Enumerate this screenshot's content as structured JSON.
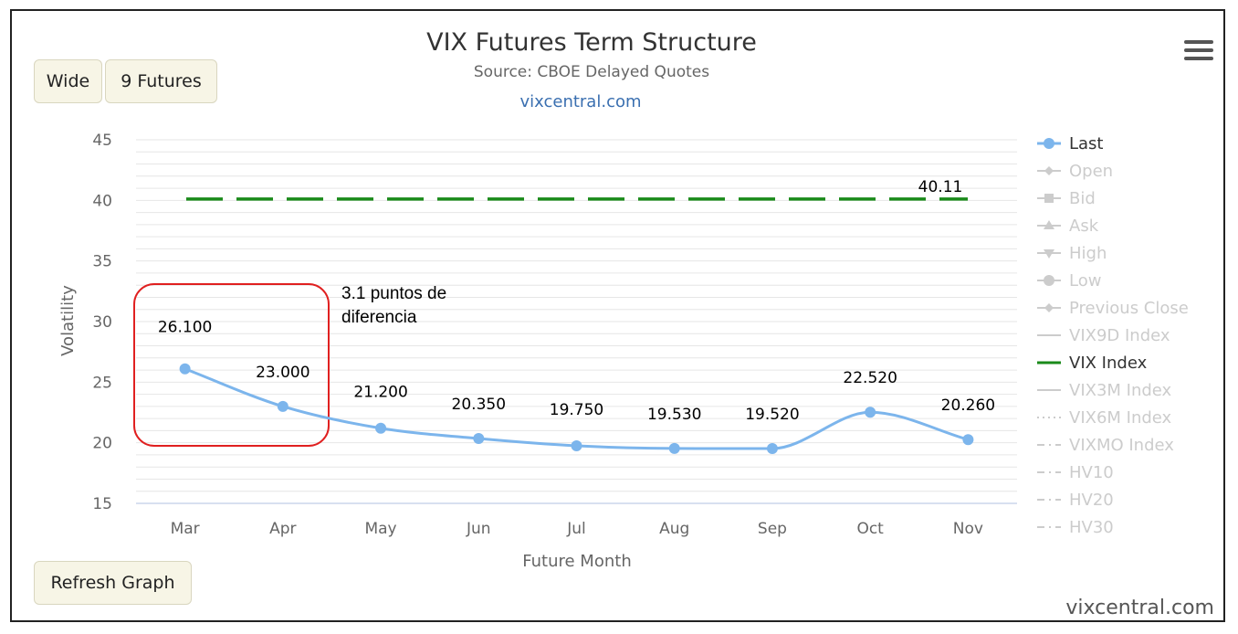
{
  "toolbar": {
    "wide_label": "Wide",
    "futures_label": "9 Futures",
    "refresh_label": "Refresh Graph"
  },
  "menu_icon": "hamburger-menu-icon",
  "watermark": "vixcentral.com",
  "chart_data": {
    "type": "line",
    "title": "VIX Futures Term Structure",
    "subtitle": "Source: CBOE Delayed Quotes",
    "credit": "vixcentral.com",
    "xlabel": "Future Month",
    "ylabel": "Volatility",
    "ylim": [
      15,
      45
    ],
    "yticks": [
      15,
      20,
      25,
      30,
      35,
      40,
      45
    ],
    "categories": [
      "Mar",
      "Apr",
      "May",
      "Jun",
      "Jul",
      "Aug",
      "Sep",
      "Oct",
      "Nov"
    ],
    "series": [
      {
        "name": "Last",
        "values": [
          26.1,
          23.0,
          21.2,
          20.35,
          19.75,
          19.53,
          19.52,
          22.52,
          20.26
        ],
        "labels": [
          "26.100",
          "23.000",
          "21.200",
          "20.350",
          "19.750",
          "19.530",
          "19.520",
          "22.520",
          "20.260"
        ],
        "color": "#7cb5ec",
        "style": "smooth-line-with-markers"
      },
      {
        "name": "VIX Index",
        "value": 40.11,
        "label": "40.11",
        "color": "#1a8a1a",
        "style": "dashed"
      }
    ],
    "legend": {
      "position": "right",
      "items": [
        {
          "name": "Last",
          "active": true,
          "symbol": "circle-line"
        },
        {
          "name": "Open",
          "active": false,
          "symbol": "diamond-line"
        },
        {
          "name": "Bid",
          "active": false,
          "symbol": "square-line"
        },
        {
          "name": "Ask",
          "active": false,
          "symbol": "triangle-line"
        },
        {
          "name": "High",
          "active": false,
          "symbol": "triangle-down-line"
        },
        {
          "name": "Low",
          "active": false,
          "symbol": "circle-line"
        },
        {
          "name": "Previous Close",
          "active": false,
          "symbol": "diamond-line"
        },
        {
          "name": "VIX9D Index",
          "active": false,
          "symbol": "solid-line"
        },
        {
          "name": "VIX Index",
          "active": true,
          "symbol": "solid-line"
        },
        {
          "name": "VIX3M Index",
          "active": false,
          "symbol": "solid-line"
        },
        {
          "name": "VIX6M Index",
          "active": false,
          "symbol": "dotted-line"
        },
        {
          "name": "VIXMO Index",
          "active": false,
          "symbol": "dash-dot-line"
        },
        {
          "name": "HV10",
          "active": false,
          "symbol": "dash-dot-line"
        },
        {
          "name": "HV20",
          "active": false,
          "symbol": "dash-dot-line"
        },
        {
          "name": "HV30",
          "active": false,
          "symbol": "dash-dot-line"
        }
      ]
    },
    "annotation": {
      "text_lines": [
        "3.1 puntos de",
        "diferencia"
      ],
      "box_color": "#e02020",
      "covers_categories": [
        "Mar",
        "Apr"
      ]
    },
    "grid": true
  }
}
